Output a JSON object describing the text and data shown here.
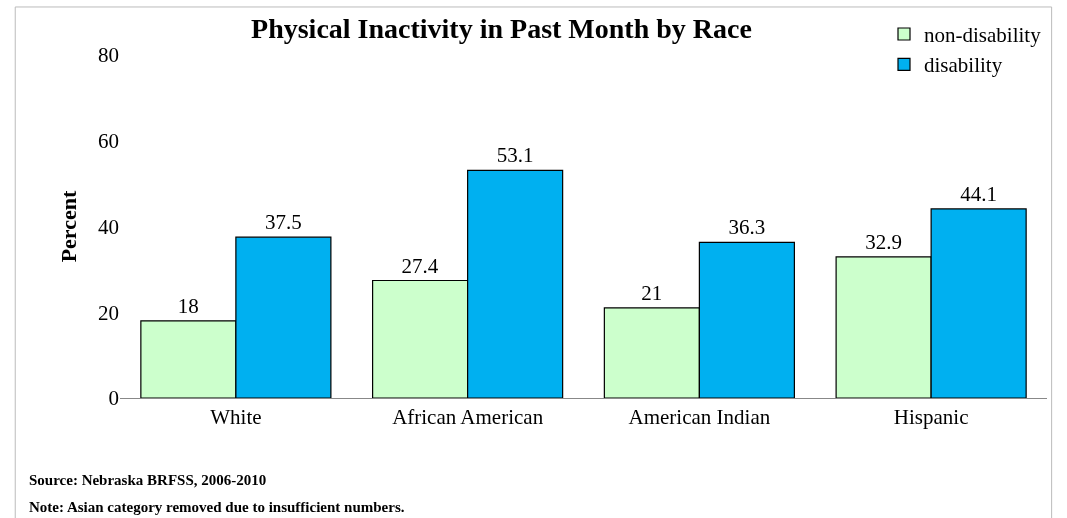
{
  "chart_data": {
    "type": "bar",
    "title": "Physical Inactivity in Past Month by Race",
    "ylabel": "Percent",
    "categories": [
      "White",
      "African American",
      "American Indian",
      "Hispanic"
    ],
    "series": [
      {
        "name": "non-disability",
        "color": "#ccffcc",
        "values": [
          18,
          27.4,
          21,
          32.9
        ]
      },
      {
        "name": "disability",
        "color": "#00b0f0",
        "values": [
          37.5,
          53.1,
          36.3,
          44.1
        ]
      }
    ],
    "ylim": [
      0,
      80
    ],
    "yticks": [
      0,
      20,
      40,
      60,
      80
    ],
    "legend": "top right",
    "data_labels": true,
    "annotations": [
      "Source: Nebraska BRFSS, 2006-2010",
      "Note: Asian category removed due to insufficient numbers."
    ]
  }
}
